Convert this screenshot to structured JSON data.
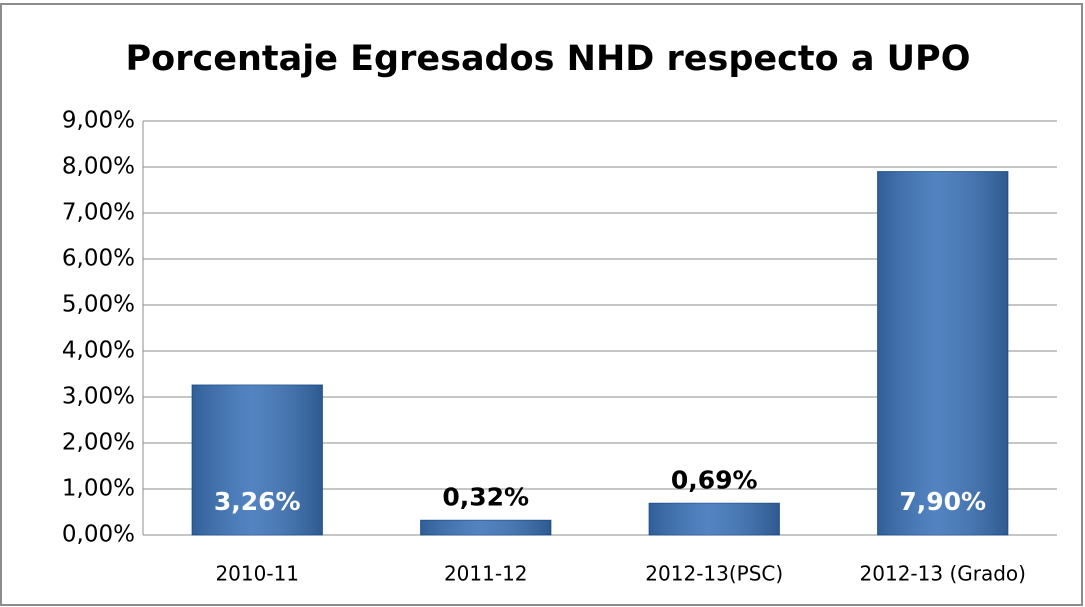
{
  "chart_data": {
    "type": "bar",
    "title": "Porcentaje Egresados NHD respecto a UPO",
    "categories": [
      "2010-11",
      "2011-12",
      "2012-13(PSC)",
      "2012-13 (Grado)"
    ],
    "values": [
      3.26,
      0.32,
      0.69,
      7.9
    ],
    "value_labels": [
      "3,26%",
      "0,32%",
      "0,69%",
      "7,90%"
    ],
    "color": "#3b73b9",
    "ylim": [
      0,
      9
    ],
    "yticks": [
      {
        "value": 0,
        "label": "0,00%"
      },
      {
        "value": 1,
        "label": "1,00%"
      },
      {
        "value": 2,
        "label": "2,00%"
      },
      {
        "value": 3,
        "label": "3,00%"
      },
      {
        "value": 4,
        "label": "4,00%"
      },
      {
        "value": 5,
        "label": "5,00%"
      },
      {
        "value": 6,
        "label": "6,00%"
      },
      {
        "value": 7,
        "label": "7,00%"
      },
      {
        "value": 8,
        "label": "8,00%"
      },
      {
        "value": 9,
        "label": "9,00%"
      }
    ],
    "grid": true
  }
}
